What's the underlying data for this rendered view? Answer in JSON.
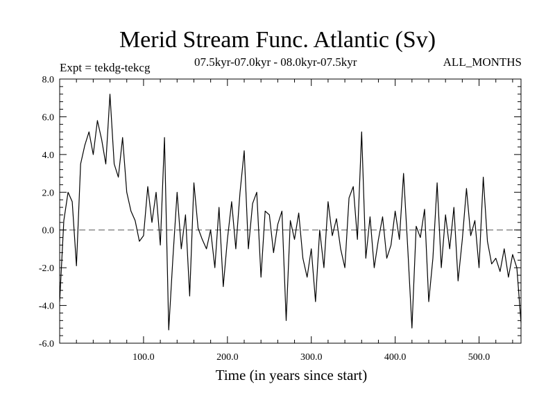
{
  "chart_data": {
    "type": "line",
    "title": "Merid Stream Func. Atlantic (Sv)",
    "subtitle_left": "Expt = tekdg-tekcg",
    "subtitle_center": "07.5kyr-07.0kyr - 08.0kyr-07.5kyr",
    "subtitle_right": "ALL_MONTHS",
    "xlabel": "Time (in years since start)",
    "ylabel": "",
    "xlim": [
      0,
      550
    ],
    "ylim": [
      -6,
      8
    ],
    "xticks": [
      100,
      200,
      300,
      400,
      500
    ],
    "xtick_labels": [
      "100.0",
      "200.0",
      "300.0",
      "400.0",
      "500.0"
    ],
    "yticks": [
      -6,
      -4,
      -2,
      0,
      2,
      4,
      6,
      8
    ],
    "ytick_labels": [
      "-6.0",
      "-4.0",
      "-2.0",
      "0.0",
      "2.0",
      "4.0",
      "6.0",
      "8.0"
    ],
    "reference_line": {
      "y": 0,
      "style": "dashed"
    },
    "series": [
      {
        "name": "Merid Stream Func. Atlantic",
        "color": "#000000",
        "x": [
          0,
          5,
          10,
          15,
          20,
          25,
          30,
          35,
          40,
          45,
          50,
          55,
          60,
          65,
          70,
          75,
          80,
          85,
          90,
          95,
          100,
          105,
          110,
          115,
          120,
          125,
          130,
          135,
          140,
          145,
          150,
          155,
          160,
          165,
          170,
          175,
          180,
          185,
          190,
          195,
          200,
          205,
          210,
          215,
          220,
          225,
          230,
          235,
          240,
          245,
          250,
          255,
          260,
          265,
          270,
          275,
          280,
          285,
          290,
          295,
          300,
          305,
          310,
          315,
          320,
          325,
          330,
          335,
          340,
          345,
          350,
          355,
          360,
          365,
          370,
          375,
          380,
          385,
          390,
          395,
          400,
          405,
          410,
          415,
          420,
          425,
          430,
          435,
          440,
          445,
          450,
          455,
          460,
          465,
          470,
          475,
          480,
          485,
          490,
          495,
          500,
          505,
          510,
          515,
          520,
          525,
          530,
          535,
          540,
          545,
          550
        ],
        "values": [
          -3.8,
          0.5,
          2.0,
          1.5,
          -1.9,
          3.5,
          4.5,
          5.2,
          4.0,
          5.8,
          4.8,
          3.5,
          7.2,
          3.5,
          2.8,
          4.9,
          2.0,
          1.0,
          0.5,
          -0.6,
          -0.3,
          2.3,
          0.4,
          2.0,
          -0.8,
          4.9,
          -5.3,
          -1.5,
          2.0,
          -1.0,
          0.8,
          -3.5,
          2.5,
          0.1,
          -0.5,
          -1.0,
          0.0,
          -2.0,
          1.2,
          -3.0,
          -0.5,
          1.5,
          -1.0,
          2.0,
          4.2,
          -1.0,
          1.4,
          2.0,
          -2.5,
          1.0,
          0.8,
          -1.2,
          0.3,
          1.0,
          -4.8,
          0.5,
          -0.5,
          0.9,
          -1.5,
          -2.5,
          -1.0,
          -3.8,
          0.0,
          -2.0,
          1.5,
          -0.3,
          0.6,
          -1.0,
          -2.0,
          1.7,
          2.3,
          -0.5,
          5.2,
          -1.5,
          0.7,
          -2.0,
          -0.5,
          0.7,
          -1.5,
          -0.8,
          1.0,
          -0.5,
          3.0,
          -1.0,
          -5.2,
          0.2,
          -0.4,
          1.1,
          -3.8,
          -1.5,
          2.5,
          -2.0,
          0.8,
          -1.0,
          1.2,
          -2.7,
          -0.5,
          2.2,
          -0.3,
          0.5,
          -2.0,
          2.8,
          -0.6,
          -1.8,
          -1.5,
          -2.2,
          -1.0,
          -2.5,
          -1.3,
          -2.0,
          -4.9
        ]
      }
    ]
  }
}
